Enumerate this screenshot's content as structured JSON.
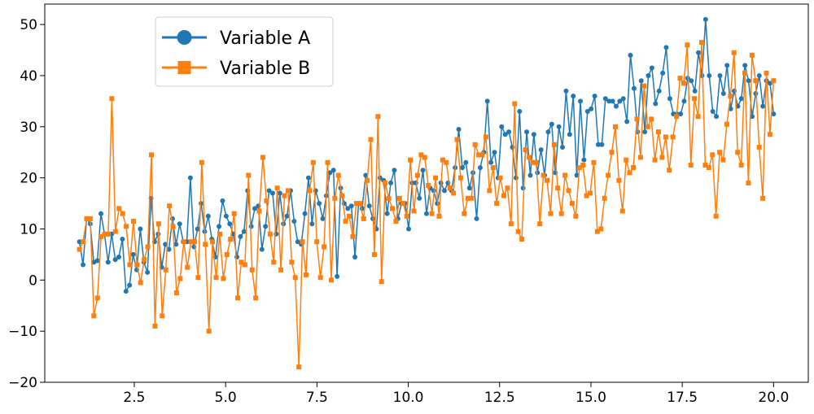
{
  "chart_data": {
    "type": "line",
    "title": "",
    "xlabel": "",
    "ylabel": "",
    "xlim": [
      0.05,
      20.95
    ],
    "ylim": [
      -20,
      54
    ],
    "xticks": [
      2.5,
      5.0,
      7.5,
      10.0,
      12.5,
      15.0,
      17.5,
      20.0
    ],
    "xtick_labels": [
      "2.5",
      "5.0",
      "7.5",
      "10.0",
      "12.5",
      "15.0",
      "17.5",
      "20.0"
    ],
    "yticks": [
      -20,
      -10,
      0,
      10,
      20,
      30,
      40,
      50
    ],
    "ytick_labels": [
      "−20",
      "−10",
      "0",
      "10",
      "20",
      "30",
      "40",
      "50"
    ],
    "grid": false,
    "legend_position": "upper-left",
    "x_start": 1.0,
    "x_end": 20.0,
    "series": [
      {
        "name": "Variable A",
        "color": "#1f77b4",
        "marker": "circle",
        "values": [
          7.5,
          3,
          12,
          11,
          3.5,
          3.8,
          13,
          9,
          3.5,
          9,
          4,
          4.5,
          8,
          -2.2,
          -1,
          5,
          2,
          10,
          3.5,
          1.5,
          16,
          7.5,
          9,
          2.5,
          7,
          6,
          12,
          7,
          11,
          7.5,
          7.5,
          20,
          6.5,
          10,
          15,
          9.5,
          12.5,
          8,
          4.5,
          10.5,
          15.5,
          12.5,
          11,
          9,
          4.5,
          8.5,
          9.5,
          17.5,
          10.5,
          14,
          14.5,
          6,
          10.5,
          17.5,
          17,
          9,
          17,
          11,
          12.5,
          17.5,
          11.5,
          7.5,
          7,
          13,
          20,
          11,
          17.5,
          15,
          12,
          16.5,
          21,
          21.5,
          0.7,
          18,
          15,
          14,
          14.5,
          4.5,
          15,
          14,
          20.5,
          14.5,
          12,
          10,
          20,
          19.5,
          13,
          19,
          21.5,
          12,
          15,
          15,
          10,
          19,
          19,
          16,
          21.5,
          13,
          18,
          17.5,
          15,
          19,
          17.5,
          19,
          17.5,
          22,
          29.5,
          22,
          23,
          18,
          21,
          12,
          22,
          25,
          35,
          23,
          25,
          20,
          30,
          28.5,
          29,
          26,
          20,
          33,
          18,
          29,
          20.5,
          28.5,
          21,
          25.5,
          20.5,
          29,
          30.5,
          21,
          30,
          26,
          37,
          28.5,
          36,
          20.5,
          35,
          23.5,
          33,
          33.5,
          36,
          26.5,
          26.5,
          35.5,
          35,
          35,
          34,
          35,
          35.5,
          31,
          44,
          37.5,
          29,
          39,
          29,
          40,
          41.5,
          34.5,
          37,
          40.5,
          45.5,
          35.5,
          32.5,
          32.5,
          32.5,
          35,
          39.5,
          39,
          37,
          44.5,
          40,
          51,
          40,
          33,
          32,
          40,
          36.5,
          42,
          33.5,
          37,
          34,
          35.5,
          42,
          39,
          32,
          36.5,
          40,
          34,
          39,
          38.5,
          32.5
        ]
      },
      {
        "name": "Variable B",
        "color": "#ff7f0e",
        "marker": "square",
        "values": [
          6,
          7.5,
          12,
          12,
          -7,
          -3.5,
          8.5,
          9,
          9,
          35.5,
          9.5,
          14,
          13,
          10.5,
          3,
          11.5,
          3,
          -0.5,
          4,
          6.5,
          24.5,
          -9,
          11,
          -7,
          2,
          14.5,
          10.5,
          -2.5,
          0.3,
          7.5,
          2.5,
          7.5,
          7.5,
          0.5,
          23,
          7,
          -10,
          7.5,
          0.5,
          9,
          0.3,
          5,
          8,
          13,
          -3.5,
          3.5,
          3,
          20.5,
          2,
          -3.5,
          13.5,
          24,
          15.5,
          9,
          3.5,
          18,
          2,
          16.5,
          17.5,
          3.5,
          0.5,
          -17,
          7.5,
          1,
          17.5,
          23,
          7.5,
          0.5,
          6.5,
          23,
          0,
          16,
          20.5,
          16.5,
          11.5,
          12.5,
          8.5,
          15,
          15,
          12,
          19.5,
          27.5,
          5,
          32,
          -0.3,
          19,
          16,
          14,
          11.5,
          16,
          15,
          12.5,
          23.5,
          13.5,
          20.5,
          24.5,
          24,
          18.5,
          13,
          20,
          12.5,
          23.5,
          23,
          18,
          17,
          27.5,
          20,
          13,
          16,
          16,
          26.5,
          24.5,
          24.5,
          28,
          17.5,
          22,
          15,
          20,
          16.5,
          18,
          11,
          34.5,
          9.5,
          8,
          25.5,
          24,
          23,
          23,
          11,
          20.5,
          19.5,
          13,
          26.5,
          18,
          13,
          20.5,
          17.5,
          15,
          12.5,
          22,
          22.5,
          16.5,
          17,
          23,
          9.5,
          10,
          16,
          20.5,
          25,
          30,
          19.5,
          13.5,
          23.5,
          21,
          22,
          31.5,
          24,
          38,
          30,
          31.5,
          23.5,
          29,
          24,
          28,
          21.5,
          28,
          32,
          39.5,
          38.5,
          46,
          22.5,
          35.5,
          32,
          46.5,
          22.5,
          22,
          24.5,
          12.5,
          25,
          23.5,
          30.5,
          36,
          44.5,
          25,
          22.5,
          40.5,
          19,
          44,
          39,
          26,
          16,
          40.5,
          28.5,
          39
        ]
      }
    ]
  }
}
